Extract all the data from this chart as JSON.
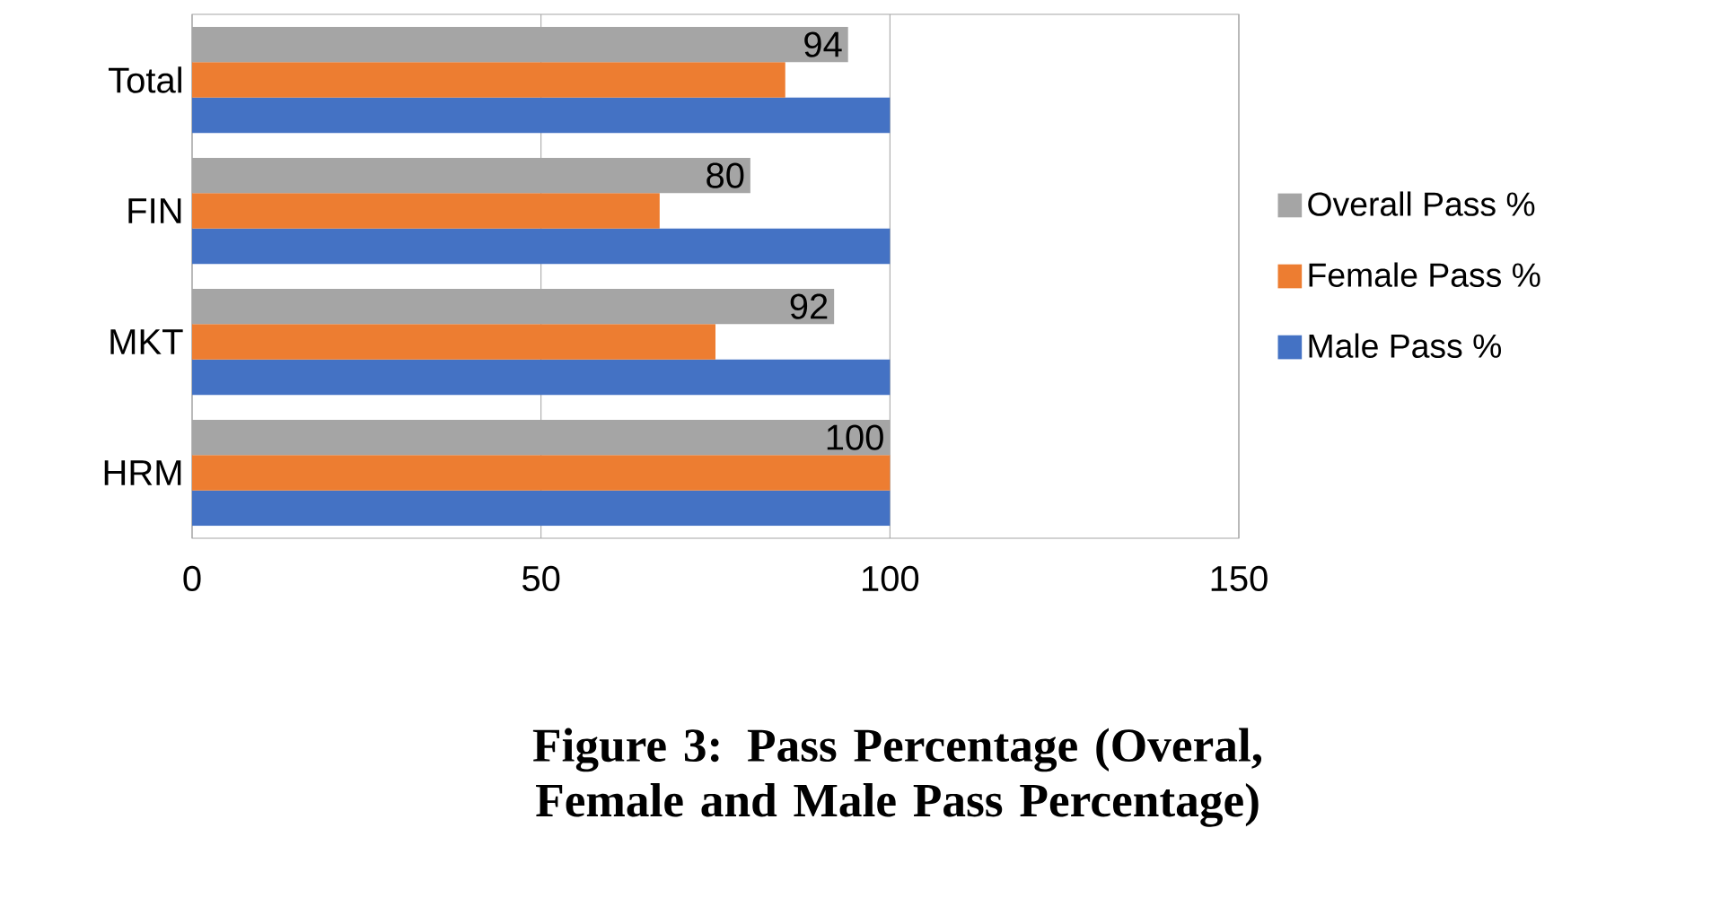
{
  "chart_data": {
    "type": "bar",
    "orientation": "horizontal",
    "categories": [
      "Total",
      "FIN",
      "MKT",
      "HRM"
    ],
    "series": [
      {
        "name": "Male Pass %",
        "color": "#4472c4",
        "values": [
          100,
          100,
          100,
          100
        ]
      },
      {
        "name": "Female Pass %",
        "color": "#ed7d31",
        "values": [
          85,
          67,
          75,
          100
        ]
      },
      {
        "name": "Overall Pass %",
        "color": "#a5a5a5",
        "values": [
          94,
          80,
          92,
          100
        ],
        "value_labels": [
          "94",
          "80",
          "92",
          "100"
        ]
      }
    ],
    "xlim": [
      0,
      150
    ],
    "xticks": [
      0,
      50,
      100,
      150
    ],
    "grid": "x",
    "legend": "right",
    "annotations": [
      "**Figure 3: Pass Percentage (Overal, Female and Male Pass Percentage)**"
    ]
  }
}
